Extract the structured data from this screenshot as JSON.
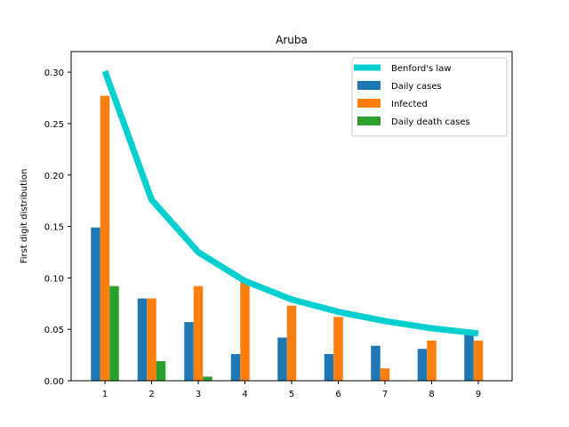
{
  "chart_data": {
    "type": "bar",
    "title": "Aruba",
    "xlabel": "",
    "ylabel": "First digit distribution",
    "categories": [
      "1",
      "2",
      "3",
      "4",
      "5",
      "6",
      "7",
      "8",
      "9"
    ],
    "ylim": [
      0,
      0.32
    ],
    "yticks": [
      "0.00",
      "0.05",
      "0.10",
      "0.15",
      "0.20",
      "0.25",
      "0.30"
    ],
    "legend_position": "top-right",
    "series": [
      {
        "name": "Benford's law",
        "kind": "line",
        "color": "#00cfcf",
        "values": [
          0.301,
          0.176,
          0.125,
          0.097,
          0.079,
          0.067,
          0.058,
          0.051,
          0.046
        ]
      },
      {
        "name": "Daily cases",
        "kind": "bar",
        "color": "#1f77b4",
        "values": [
          0.149,
          0.08,
          0.057,
          0.026,
          0.042,
          0.026,
          0.034,
          0.031,
          0.046
        ]
      },
      {
        "name": "Infected",
        "kind": "bar",
        "color": "#ff7f0e",
        "values": [
          0.277,
          0.08,
          0.092,
          0.096,
          0.073,
          0.062,
          0.012,
          0.039,
          0.039
        ]
      },
      {
        "name": "Daily death cases",
        "kind": "bar",
        "color": "#2ca02c",
        "values": [
          0.092,
          0.019,
          0.004,
          0,
          0,
          0,
          0,
          0,
          0
        ]
      }
    ]
  }
}
